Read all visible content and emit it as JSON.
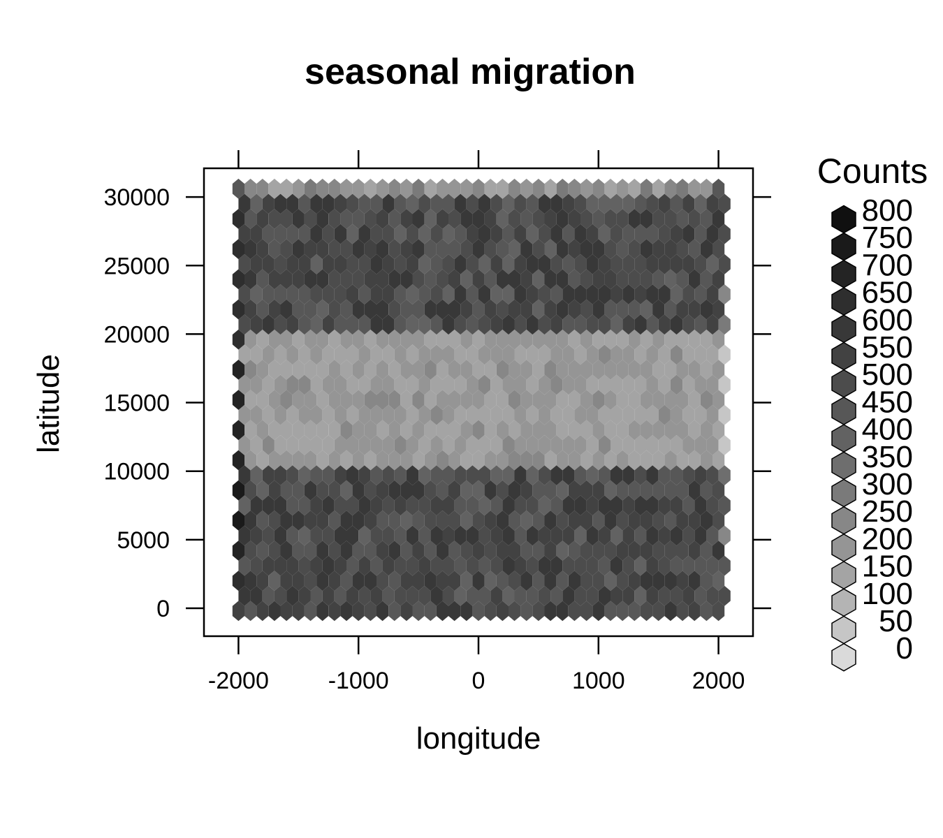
{
  "chart_data": {
    "type": "heatmap",
    "subtype": "hexbin",
    "title": "seasonal migration",
    "xlabel": "longitude",
    "ylabel": "latitude",
    "xlim": [
      -2300,
      2300
    ],
    "ylim": [
      -2000,
      32500
    ],
    "x_ticks": [
      -2000,
      -1000,
      0,
      1000,
      2000
    ],
    "x_tick_labels": [
      "-2000",
      "-1000",
      "0",
      "1000",
      "2000"
    ],
    "y_ticks": [
      0,
      5000,
      10000,
      15000,
      20000,
      25000,
      30000
    ],
    "y_tick_labels": [
      "0",
      "5000",
      "10000",
      "15000",
      "20000",
      "25000",
      "30000"
    ],
    "legend": {
      "title": "Counts",
      "position": "right",
      "levels": [
        "800",
        "750",
        "700",
        "650",
        "600",
        "550",
        "500",
        "450",
        "400",
        "350",
        "300",
        "250",
        "200",
        "150",
        "100",
        "50",
        "0"
      ],
      "colors": [
        "#101010",
        "#1a1a1a",
        "#242424",
        "#2e2e2e",
        "#383838",
        "#424242",
        "#4c4c4c",
        "#575757",
        "#626262",
        "#6e6e6e",
        "#7a7a7a",
        "#878787",
        "#959595",
        "#a4a4a4",
        "#b4b4b4",
        "#c6c6c6",
        "#dadada"
      ]
    },
    "color_scale": "grayscale, darker = higher count",
    "hex_grid": {
      "x_start": -2000,
      "x_step": 100,
      "x_count": 41,
      "y_start": -200,
      "y_step": 1100,
      "y_count": 29,
      "odd_row_x_offset": 50
    },
    "bands": [
      {
        "lat_range": [
          -200,
          10500
        ],
        "count_level": "approx 450-600",
        "note": "high density"
      },
      {
        "lat_range": [
          10500,
          19700
        ],
        "count_level": "approx 150-250",
        "note": "low density"
      },
      {
        "lat_range": [
          19700,
          29500
        ],
        "count_level": "approx 450-600",
        "note": "high density"
      },
      {
        "lat_range": [
          29500,
          30600
        ],
        "count_level": "approx 150-400",
        "note": "edge row"
      }
    ],
    "grid": false
  }
}
